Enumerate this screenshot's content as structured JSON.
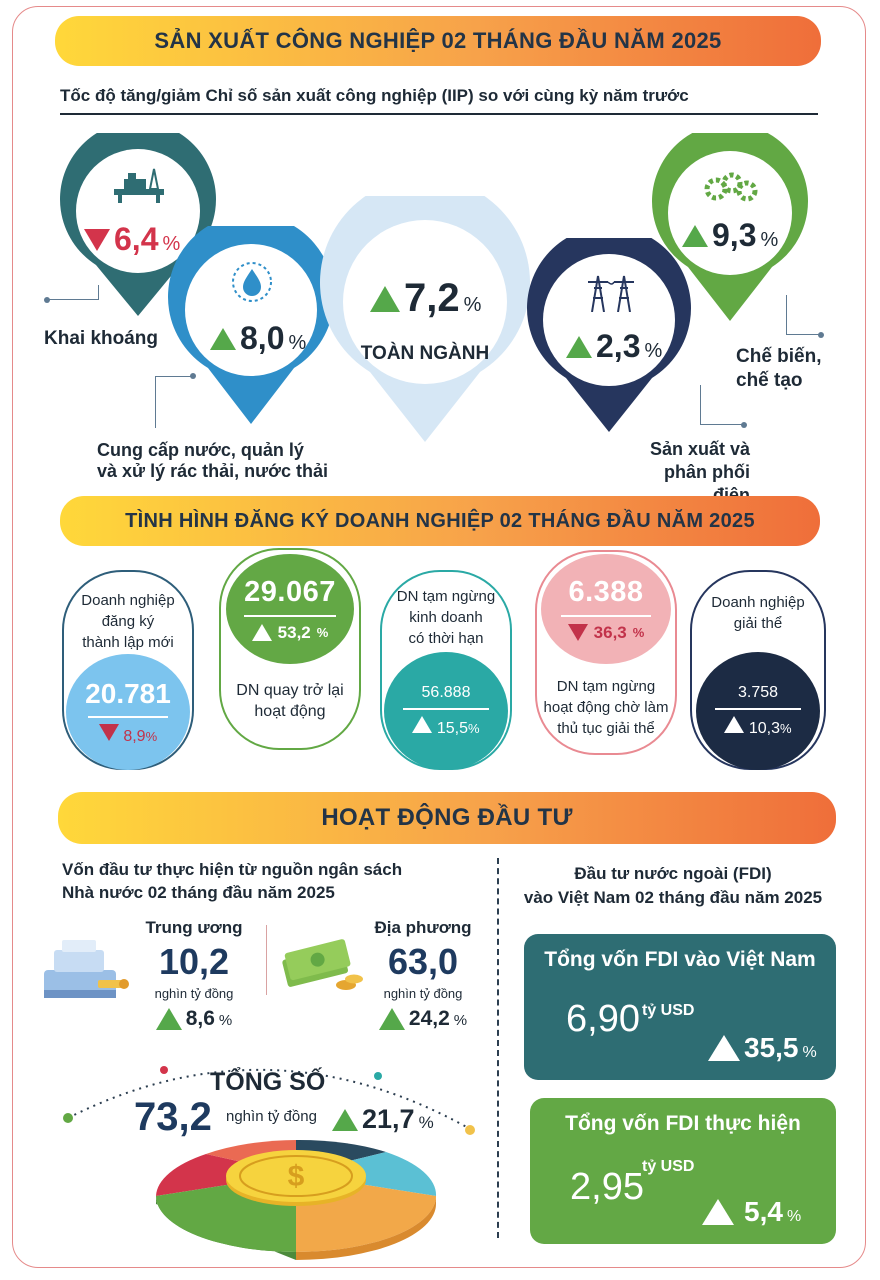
{
  "sections": {
    "industrial_title": "SẢN XUẤT CÔNG NGHIỆP 02 THÁNG ĐẦU NĂM 2025",
    "iip_subtitle": "Tốc độ tăng/giảm Chỉ số sản xuất công nghiệp (IIP) so với cùng kỳ năm trước",
    "business_title": "TÌNH HÌNH ĐĂNG KÝ DOANH NGHIỆP 02 THÁNG ĐẦU NĂM 2025",
    "investment_title": "HOẠT ĐỘNG ĐẦU TƯ"
  },
  "iip": {
    "mining": {
      "value": "6,4",
      "unit": "%",
      "direction": "down",
      "label": "Khai khoáng",
      "color": "#2f6d73"
    },
    "water": {
      "value": "8,0",
      "unit": "%",
      "direction": "up",
      "label_line1": "Cung cấp nước, quản lý",
      "label_line2": "và xử lý rác thải, nước thải",
      "color": "#2f8fc9"
    },
    "total": {
      "value": "7,2",
      "unit": "%",
      "direction": "up",
      "label": "TOÀN NGÀNH",
      "color": "#d6e7f5"
    },
    "electricity": {
      "value": "2,3",
      "unit": "%",
      "direction": "up",
      "label_line1": "Sản xuất và",
      "label_line2": "phân phối điện",
      "color": "#26365e"
    },
    "manufacturing": {
      "value": "9,3",
      "unit": "%",
      "direction": "up",
      "label_line1": "Chế biến,",
      "label_line2": "chế tạo",
      "color": "#62a844"
    }
  },
  "business": {
    "new": {
      "label_line1": "Doanh nghiệp",
      "label_line2": "đăng ký",
      "label_line3": "thành lập mới",
      "value": "20.781",
      "change": "8,9",
      "unit": "%",
      "direction": "down"
    },
    "returned": {
      "value": "29.067",
      "change": "53,2",
      "unit": "%",
      "direction": "up",
      "label_line1": "DN quay trở lại",
      "label_line2": "hoạt động"
    },
    "suspended": {
      "label_line1": "DN tạm ngừng",
      "label_line2": "kinh doanh",
      "label_line3": "có thời hạn",
      "value": "56.888",
      "change": "15,5",
      "unit": "%",
      "direction": "up"
    },
    "pending_dissolution": {
      "value": "6.388",
      "change": "36,3",
      "unit": "%",
      "direction": "down",
      "label_line1": "DN tạm ngừng",
      "label_line2": "hoạt động chờ làm",
      "label_line3": "thủ tục giải thể"
    },
    "dissolved": {
      "label_line1": "Doanh nghiệp",
      "label_line2": "giải thể",
      "value": "3.758",
      "change": "10,3",
      "unit": "%",
      "direction": "up"
    }
  },
  "investment": {
    "budget_title_line1": "Vốn đầu tư thực hiện từ nguồn ngân sách",
    "budget_title_line2": "Nhà nước 02 tháng đầu năm 2025",
    "central": {
      "label": "Trung ương",
      "value": "10,2",
      "unit": "nghìn tỷ đồng",
      "change": "8,6",
      "pct": "%"
    },
    "local": {
      "label": "Địa phương",
      "value": "63,0",
      "unit": "nghìn tỷ đồng",
      "change": "24,2",
      "pct": "%"
    },
    "total": {
      "label": "TỔNG SỐ",
      "value": "73,2",
      "unit": "nghìn tỷ đồng",
      "change": "21,7",
      "pct": "%"
    },
    "fdi_title_line1": "Đầu tư nước ngoài (FDI)",
    "fdi_title_line2": "vào Việt Nam 02 tháng đầu năm 2025",
    "fdi_registered": {
      "label": "Tổng vốn FDI vào Việt Nam",
      "value": "6,90",
      "unit": "tỷ USD",
      "change": "35,5",
      "pct": "%",
      "color": "#2e6d73"
    },
    "fdi_realized": {
      "label": "Tổng vốn FDI thực hiện",
      "value": "2,95",
      "unit": "tỷ USD",
      "change": "5,4",
      "pct": "%",
      "color": "#63a845"
    }
  },
  "icons": [
    "oil-rig-icon",
    "water-drop-icon",
    "power-tower-icon",
    "gears-icon",
    "cash-register-icon",
    "money-stack-icon",
    "coin-icon"
  ],
  "colors": {
    "up": "#55a84a",
    "down": "#d3344b",
    "dark": "#1e2a36"
  }
}
